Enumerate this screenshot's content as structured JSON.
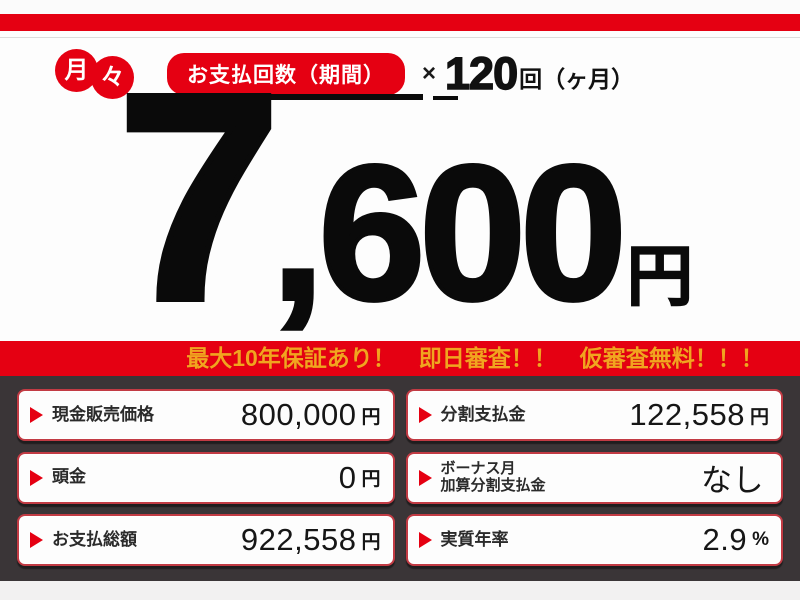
{
  "badge": {
    "char1": "月",
    "char2": "々"
  },
  "payment_header": {
    "pill_label": "お支払回数（期間）",
    "multiply_sign": "×",
    "installments_count": "120",
    "installments_unit": "回（ヶ月）"
  },
  "headline": {
    "monthly_amount_lead": "7",
    "monthly_amount_rest": ",600",
    "currency_suffix": "円",
    "full_amount": "7,600円"
  },
  "promo_banner": {
    "text": "最大10年保証あり！　即日審査！！　仮審査無料！！！"
  },
  "price_details": {
    "items": [
      {
        "label": "現金販売価格",
        "label2": "",
        "value": "800,000",
        "unit": "円"
      },
      {
        "label": "分割支払金",
        "label2": "",
        "value": "122,558",
        "unit": "円"
      },
      {
        "label": "頭金",
        "label2": "",
        "value": "0",
        "unit": "円"
      },
      {
        "label": "ボーナス月",
        "label2": "加算分割支払金",
        "value": "なし",
        "unit": ""
      },
      {
        "label": "お支払総額",
        "label2": "",
        "value": "922,558",
        "unit": "円"
      },
      {
        "label": "実質年率",
        "label2": "",
        "value": "2.9",
        "unit": "%"
      }
    ]
  },
  "colors": {
    "accent_red": "#e50012",
    "banner_text_yellow": "#f2a41f",
    "panel_dark": "#3a3537",
    "box_border_red": "#c23b44"
  }
}
